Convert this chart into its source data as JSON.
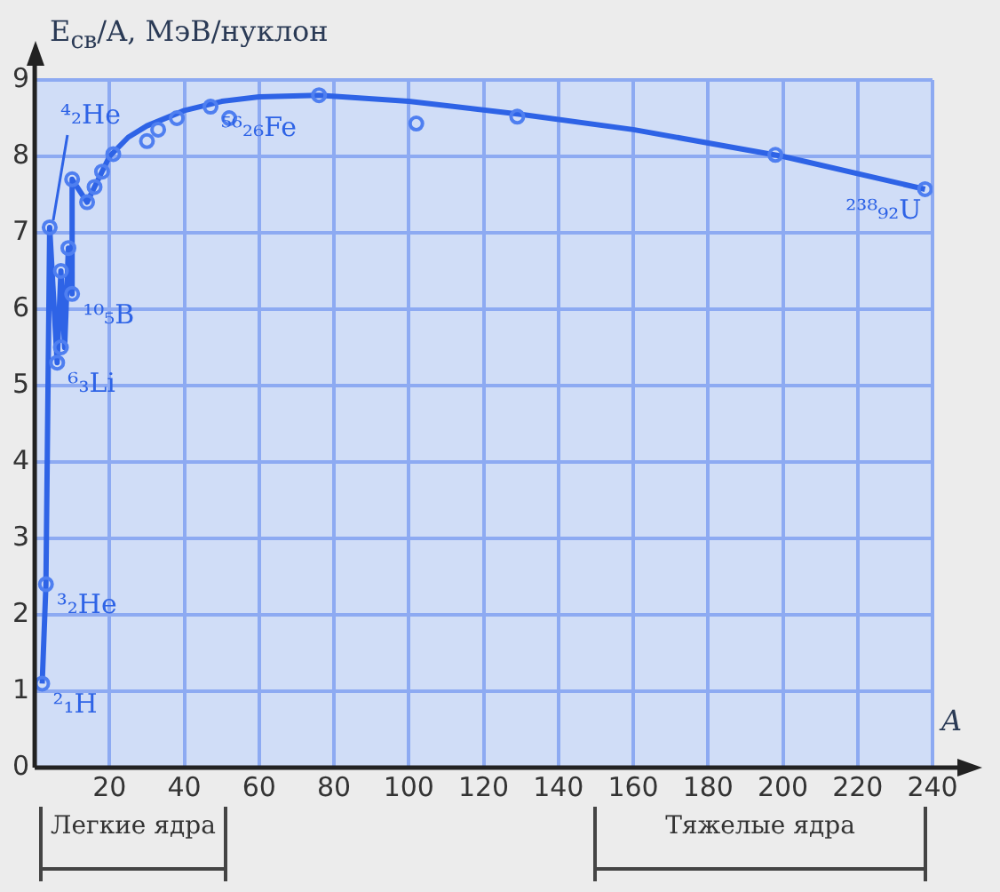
{
  "chart_data": {
    "type": "line",
    "ylabel": "E$_{св}$/A, МэВ/нуклон",
    "xlabel": "A",
    "xlim": [
      0,
      240
    ],
    "xticks": [
      {
        "value": 0,
        "label": null
      },
      20,
      40,
      60,
      80,
      100,
      120,
      140,
      160,
      180,
      200,
      220,
      240
    ],
    "ylim": [
      0,
      9
    ],
    "yticks": [
      0,
      1,
      2,
      3,
      4,
      5,
      6,
      7,
      8,
      9
    ],
    "grid": true,
    "legend": false,
    "series": [
      {
        "marker": "none",
        "color": "#2e63e6",
        "x": [
          2,
          3,
          4,
          6,
          7,
          8,
          9,
          10,
          10,
          14,
          16,
          18,
          20,
          25,
          30,
          40,
          50,
          60,
          76,
          100,
          130,
          160,
          200,
          238
        ],
        "values": [
          1.1,
          2.4,
          7.07,
          5.3,
          6.5,
          5.5,
          6.8,
          6.2,
          7.7,
          7.4,
          7.6,
          7.8,
          8.0,
          8.25,
          8.4,
          8.6,
          8.72,
          8.78,
          8.8,
          8.72,
          8.55,
          8.35,
          8.0,
          7.57
        ]
      },
      {
        "type": "scatter",
        "marker": "circle",
        "color": "#4f7ff0",
        "x": [
          2,
          3,
          4,
          6,
          7,
          7,
          9,
          10,
          10,
          14,
          16,
          18,
          21,
          30,
          33,
          38,
          47,
          52,
          76,
          102,
          129,
          198,
          238
        ],
        "values": [
          1.1,
          2.4,
          7.07,
          5.3,
          6.5,
          5.5,
          6.8,
          6.2,
          7.7,
          7.4,
          7.6,
          7.8,
          8.03,
          8.2,
          8.35,
          8.5,
          8.65,
          8.5,
          8.8,
          8.43,
          8.52,
          8.02,
          7.57
        ]
      }
    ],
    "annotations": [
      {
        "text": "²₁H",
        "x": 2,
        "y": 1.1
      },
      {
        "text": "³₂He",
        "x": 3,
        "y": 2.4
      },
      {
        "text": "⁴₂He",
        "x": 4,
        "y": 7.07
      },
      {
        "text": "⁶₃Li",
        "x": 6,
        "y": 5.3
      },
      {
        "text": "¹⁰₅B",
        "x": 10,
        "y": 6.2
      },
      {
        "text": "⁵⁶₂₆Fe",
        "x": 47,
        "y": 8.65
      },
      {
        "text": "²³⁸₉₂U",
        "x": 238,
        "y": 7.57
      },
      "Легкие ядра",
      "Тяжелые ядра"
    ]
  }
}
